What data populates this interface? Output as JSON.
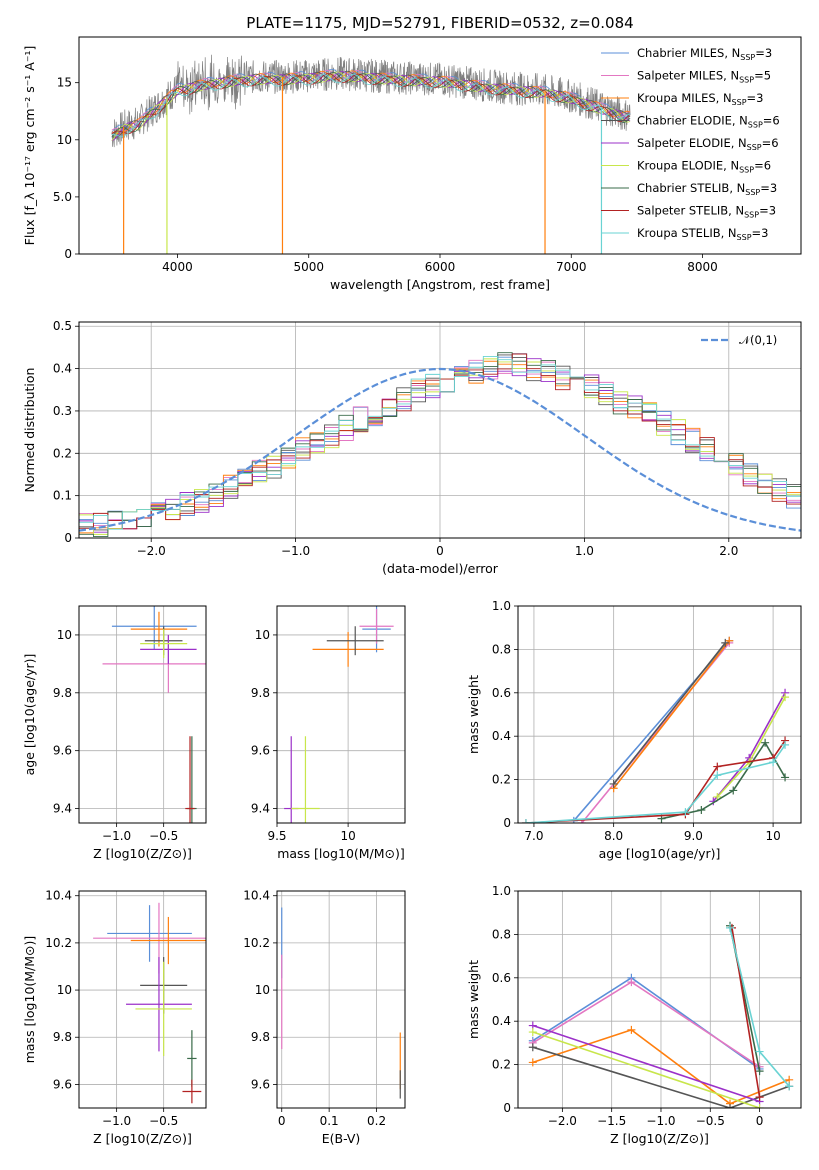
{
  "figure": {
    "title": "PLATE=1175, MJD=52791, FIBERID=0532, z=0.084",
    "colors": {
      "Chabrier MILES": "#5b8fd8",
      "Salpeter MILES": "#e377c2",
      "Kroupa MILES": "#ff7f0e",
      "Chabrier ELODIE": "#555555",
      "Salpeter ELODIE": "#9b30c9",
      "Kroupa ELODIE": "#c8e64b",
      "Chabrier STELIB": "#3a6b4a",
      "Salpeter STELIB": "#b22222",
      "Kroupa STELIB": "#6ad3d3"
    }
  },
  "chart_data": [
    {
      "id": "spectrum",
      "type": "line",
      "xlabel": "wavelength [Angstrom, rest frame]",
      "ylabel": "Flux [f_λ 10⁻¹⁷ erg cm⁻² s⁻¹ A⁻¹]",
      "xlim": [
        3250,
        8750
      ],
      "ylim": [
        0,
        19
      ],
      "xticks": [
        4000,
        5000,
        6000,
        7000,
        8000
      ],
      "yticks": [
        0,
        5,
        10,
        15
      ],
      "legend_position": "right",
      "legend": [
        "Chabrier MILES, N_SSP=3",
        "Salpeter MILES, N_SSP=5",
        "Kroupa MILES, N_SSP=3",
        "Chabrier ELODIE, N_SSP=6",
        "Salpeter ELODIE, N_SSP=6",
        "Kroupa ELODIE, N_SSP=6",
        "Chabrier STELIB, N_SSP=3",
        "Salpeter STELIB, N_SSP=3",
        "Kroupa STELIB, N_SSP=3"
      ],
      "series_data": {
        "x": [
          3500,
          3600,
          3700,
          3800,
          3900,
          4000,
          4200,
          4400,
          4600,
          4800,
          5000,
          5200,
          5400,
          5600,
          5800,
          6000,
          6200,
          6400,
          6600,
          6800,
          7000,
          7200,
          7400
        ],
        "y": [
          10.5,
          11.2,
          11.5,
          12.5,
          13.5,
          14.5,
          15.0,
          15.3,
          15.5,
          15.5,
          15.6,
          15.8,
          15.7,
          15.5,
          15.4,
          15.3,
          15.0,
          14.7,
          14.5,
          14.3,
          13.8,
          13.0,
          12.2
        ]
      }
    },
    {
      "id": "residuals",
      "type": "bar",
      "xlabel": "(data-model)/error",
      "ylabel": "Normed distribution",
      "xlim": [
        -2.5,
        2.5
      ],
      "ylim": [
        0,
        0.51
      ],
      "xticks": [
        -2,
        -1,
        0,
        1,
        2
      ],
      "yticks": [
        0.0,
        0.1,
        0.2,
        0.3,
        0.4,
        0.5
      ],
      "legend_position": "top-right",
      "legend": [
        "𝒩(0,1)"
      ],
      "bin_width": 0.1,
      "hist_values": [
        0.03,
        0.03,
        0.04,
        0.04,
        0.05,
        0.06,
        0.07,
        0.08,
        0.09,
        0.1,
        0.12,
        0.14,
        0.16,
        0.17,
        0.19,
        0.21,
        0.23,
        0.24,
        0.26,
        0.28,
        0.29,
        0.31,
        0.33,
        0.35,
        0.36,
        0.37,
        0.38,
        0.39,
        0.4,
        0.41,
        0.41,
        0.4,
        0.39,
        0.38,
        0.37,
        0.36,
        0.34,
        0.32,
        0.31,
        0.29,
        0.27,
        0.25,
        0.23,
        0.21,
        0.19,
        0.17,
        0.15,
        0.13,
        0.11,
        0.1
      ]
    },
    {
      "id": "age_vs_Z",
      "type": "scatter",
      "xlabel": "Z [log10(Z/Z⊙)]",
      "ylabel": "age [log10(age/yr)]",
      "xlim": [
        -1.4,
        -0.05
      ],
      "ylim": [
        9.35,
        10.1
      ],
      "xticks": [
        -1.0,
        -0.5
      ],
      "yticks": [
        9.4,
        9.6,
        9.8,
        10.0
      ],
      "points": [
        {
          "x": -0.6,
          "y": 10.03,
          "xerr": 0.45,
          "yerr": 0.08
        },
        {
          "x": -0.45,
          "y": 9.9,
          "xerr": 0.7,
          "yerr": 0.1
        },
        {
          "x": -0.55,
          "y": 10.02,
          "xerr": 0.3,
          "yerr": 0.06
        },
        {
          "x": -0.5,
          "y": 9.98,
          "xerr": 0.2,
          "yerr": 0.05
        },
        {
          "x": -0.45,
          "y": 9.95,
          "xerr": 0.3,
          "yerr": 0.05
        },
        {
          "x": -0.5,
          "y": 9.97,
          "xerr": 0.25,
          "yerr": 0.05
        },
        {
          "x": -0.2,
          "y": 9.4,
          "xerr": 0.05,
          "yerr": 0.25
        },
        {
          "x": -0.22,
          "y": 9.4,
          "xerr": 0.05,
          "yerr": 0.25
        }
      ]
    },
    {
      "id": "age_vs_mass",
      "type": "scatter",
      "xlabel": "mass [log10(M/M⊙)]",
      "ylabel": "",
      "xlim": [
        9.5,
        10.4
      ],
      "ylim": [
        9.35,
        10.1
      ],
      "xticks": [
        9.5,
        10.0
      ],
      "yticks": [
        9.4,
        9.6,
        9.8,
        10.0
      ],
      "points": [
        {
          "x": 10.2,
          "y": 10.02,
          "xerr": 0.1,
          "yerr": 0.08
        },
        {
          "x": 10.2,
          "y": 10.03,
          "xerr": 0.12,
          "yerr": 0.06
        },
        {
          "x": 10.0,
          "y": 9.95,
          "xerr": 0.25,
          "yerr": 0.06
        },
        {
          "x": 10.05,
          "y": 9.98,
          "xerr": 0.2,
          "yerr": 0.05
        },
        {
          "x": 9.6,
          "y": 9.4,
          "xerr": 0.05,
          "yerr": 0.25
        },
        {
          "x": 9.7,
          "y": 9.4,
          "xerr": 0.1,
          "yerr": 0.25
        }
      ]
    },
    {
      "id": "massweight_vs_age",
      "type": "line",
      "xlabel": "age [log10(age/yr)]",
      "ylabel": "mass weight",
      "xlim": [
        6.8,
        10.35
      ],
      "ylim": [
        0,
        1.0
      ],
      "xticks": [
        7,
        8,
        9,
        10
      ],
      "yticks": [
        0.0,
        0.2,
        0.4,
        0.6,
        0.8,
        1.0
      ],
      "series": [
        {
          "x": [
            7.5,
            9.45
          ],
          "y": [
            0.01,
            0.84
          ]
        },
        {
          "x": [
            7.6,
            9.45
          ],
          "y": [
            0.0,
            0.83
          ]
        },
        {
          "x": [
            8.0,
            9.45
          ],
          "y": [
            0.16,
            0.84
          ]
        },
        {
          "x": [
            8.0,
            9.4
          ],
          "y": [
            0.18,
            0.83
          ]
        },
        {
          "x": [
            9.25,
            9.7,
            10.15
          ],
          "y": [
            0.1,
            0.3,
            0.6
          ]
        },
        {
          "x": [
            9.3,
            9.7,
            10.15
          ],
          "y": [
            0.12,
            0.28,
            0.58
          ]
        },
        {
          "x": [
            8.6,
            9.1,
            9.5,
            9.9,
            10.15
          ],
          "y": [
            0.02,
            0.06,
            0.15,
            0.37,
            0.21
          ]
        },
        {
          "x": [
            6.9,
            8.9,
            9.3,
            10.0,
            10.15
          ],
          "y": [
            0.0,
            0.04,
            0.26,
            0.3,
            0.38
          ]
        },
        {
          "x": [
            6.9,
            8.9,
            9.3,
            10.0,
            10.15
          ],
          "y": [
            0.0,
            0.05,
            0.22,
            0.28,
            0.36
          ]
        }
      ]
    },
    {
      "id": "mass_vs_Z",
      "type": "scatter",
      "xlabel": "Z [log10(Z/Z⊙)]",
      "ylabel": "mass [log10(M/M⊙)]",
      "xlim": [
        -1.4,
        -0.05
      ],
      "ylim": [
        9.5,
        10.42
      ],
      "xticks": [
        -1.0,
        -0.5
      ],
      "yticks": [
        9.6,
        9.8,
        10.0,
        10.2,
        10.4
      ],
      "points": [
        {
          "x": -0.65,
          "y": 10.24,
          "xerr": 0.45,
          "yerr": 0.12
        },
        {
          "x": -0.55,
          "y": 10.22,
          "xerr": 0.7,
          "yerr": 0.15
        },
        {
          "x": -0.45,
          "y": 10.21,
          "xerr": 0.4,
          "yerr": 0.1
        },
        {
          "x": -0.5,
          "y": 10.02,
          "xerr": 0.25,
          "yerr": 0.12
        },
        {
          "x": -0.55,
          "y": 9.94,
          "xerr": 0.35,
          "yerr": 0.2
        },
        {
          "x": -0.5,
          "y": 9.92,
          "xerr": 0.3,
          "yerr": 0.2
        },
        {
          "x": -0.2,
          "y": 9.71,
          "xerr": 0.05,
          "yerr": 0.12
        },
        {
          "x": -0.2,
          "y": 9.57,
          "xerr": 0.1,
          "yerr": 0.05
        }
      ]
    },
    {
      "id": "mass_vs_ebv",
      "type": "scatter",
      "xlabel": "E(B-V)",
      "ylabel": "",
      "xlim": [
        -0.01,
        0.26
      ],
      "ylim": [
        9.5,
        10.42
      ],
      "xticks": [
        0.0,
        0.1,
        0.2
      ],
      "yticks": [
        9.6,
        9.8,
        10.0,
        10.2,
        10.4
      ],
      "points": [
        {
          "x": 0.0,
          "y": 10.2,
          "xerr": 0.0,
          "yerr": 0.15
        },
        {
          "x": 0.0,
          "y": 9.95,
          "xerr": 0.0,
          "yerr": 0.2
        },
        {
          "x": 0.25,
          "y": 9.7,
          "xerr": 0.0,
          "yerr": 0.12
        },
        {
          "x": 0.25,
          "y": 9.6,
          "xerr": 0.0,
          "yerr": 0.06
        }
      ]
    },
    {
      "id": "massweight_vs_Z",
      "type": "line",
      "xlabel": "Z [log10(Z/Z⊙)]",
      "ylabel": "mass weight",
      "xlim": [
        -2.45,
        0.42
      ],
      "ylim": [
        0,
        1.0
      ],
      "xticks": [
        -2.0,
        -1.5,
        -1.0,
        -0.5,
        0.0
      ],
      "yticks": [
        0.0,
        0.2,
        0.4,
        0.6,
        0.8,
        1.0
      ],
      "series": [
        {
          "x": [
            -2.3,
            -1.3,
            0.0
          ],
          "y": [
            0.31,
            0.6,
            0.18
          ]
        },
        {
          "x": [
            -2.3,
            -1.3,
            0.0
          ],
          "y": [
            0.3,
            0.58,
            0.19
          ]
        },
        {
          "x": [
            -2.3,
            -1.3,
            -0.3,
            0.3
          ],
          "y": [
            0.21,
            0.36,
            0.02,
            0.13
          ]
        },
        {
          "x": [
            -2.3,
            -0.3,
            0.3
          ],
          "y": [
            0.28,
            0.0,
            0.1
          ]
        },
        {
          "x": [
            -2.3,
            0.0
          ],
          "y": [
            0.38,
            0.03
          ]
        },
        {
          "x": [
            -2.3,
            0.0
          ],
          "y": [
            0.35,
            0.0
          ]
        },
        {
          "x": [
            -0.3,
            0.0
          ],
          "y": [
            0.84,
            0.17
          ]
        },
        {
          "x": [
            -0.28,
            0.0
          ],
          "y": [
            0.83,
            0.05
          ]
        },
        {
          "x": [
            -0.3,
            0.0,
            0.3
          ],
          "y": [
            0.83,
            0.26,
            0.1
          ]
        }
      ]
    }
  ]
}
